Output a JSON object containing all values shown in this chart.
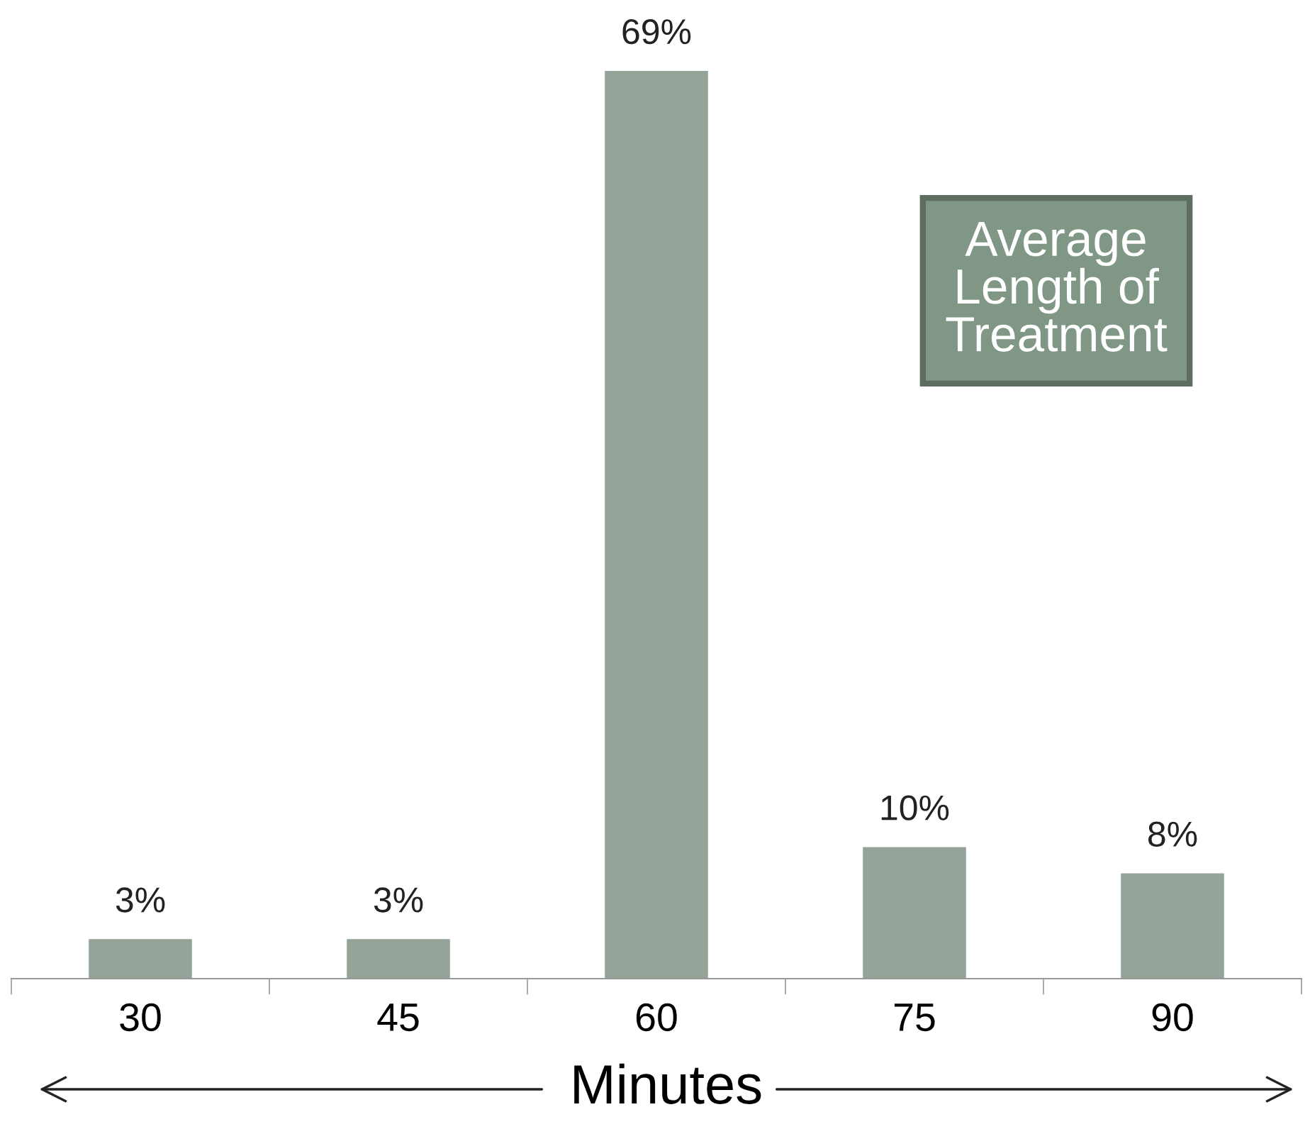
{
  "chart_data": {
    "type": "bar",
    "title": "Average\nLength of\nTreatment",
    "xlabel": "Minutes",
    "categories": [
      "30",
      "45",
      "60",
      "75",
      "90"
    ],
    "values": [
      3,
      3,
      69,
      10,
      8
    ],
    "value_labels": [
      "3%",
      "3%",
      "69%",
      "10%",
      "8%"
    ],
    "color": "#93a397",
    "grid": false,
    "legend": false
  }
}
